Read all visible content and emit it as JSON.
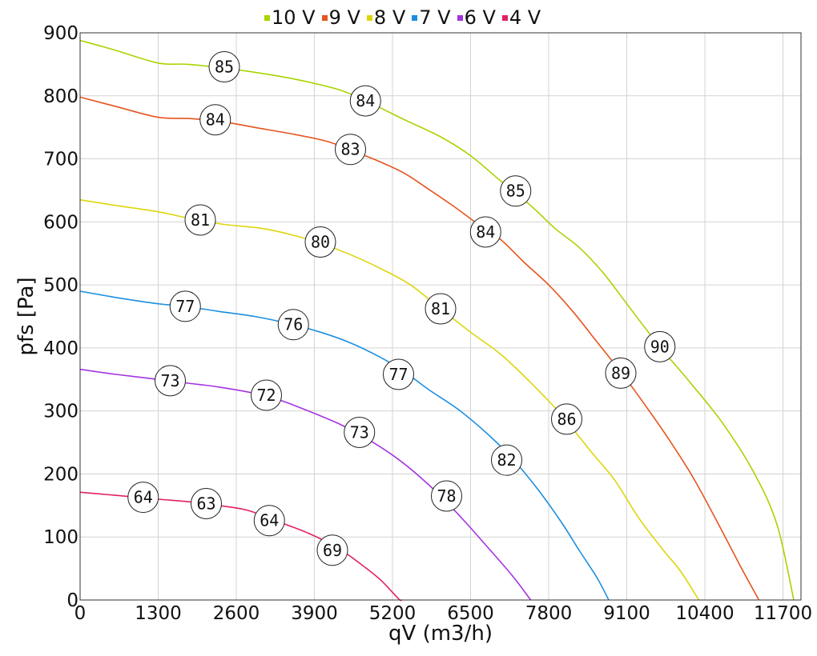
{
  "chart_data": {
    "type": "line",
    "xlabel": "qV (m3/h)",
    "ylabel": "pfs [Pa]",
    "xlim": [
      0,
      12000
    ],
    "ylim": [
      0,
      900
    ],
    "xticks": [
      0,
      1300,
      2600,
      3900,
      5200,
      6500,
      7800,
      9100,
      10400,
      11700
    ],
    "yticks": [
      0,
      100,
      200,
      300,
      400,
      500,
      600,
      700,
      800,
      900
    ],
    "grid": true,
    "legend_position": "top",
    "series": [
      {
        "name": "10 V",
        "color": "#a8d400",
        "points": [
          [
            0,
            888
          ],
          [
            600,
            872
          ],
          [
            1300,
            852
          ],
          [
            1800,
            850
          ],
          [
            2400,
            844
          ],
          [
            3000,
            836
          ],
          [
            3600,
            826
          ],
          [
            4300,
            810
          ],
          [
            4800,
            790
          ],
          [
            5400,
            762
          ],
          [
            6000,
            735
          ],
          [
            6500,
            705
          ],
          [
            7000,
            665
          ],
          [
            7500,
            626
          ],
          [
            7900,
            590
          ],
          [
            8300,
            560
          ],
          [
            8700,
            520
          ],
          [
            9100,
            470
          ],
          [
            9500,
            420
          ],
          [
            9800,
            385
          ],
          [
            10200,
            340
          ],
          [
            10700,
            280
          ],
          [
            11200,
            205
          ],
          [
            11600,
            120
          ],
          [
            11880,
            0
          ]
        ],
        "labels": [
          {
            "x": 2400,
            "y": 846,
            "text": "85"
          },
          {
            "x": 4750,
            "y": 792,
            "text": "84"
          },
          {
            "x": 7250,
            "y": 649,
            "text": "85"
          },
          {
            "x": 9650,
            "y": 402,
            "text": "90"
          }
        ]
      },
      {
        "name": "9 V",
        "color": "#e6541e",
        "points": [
          [
            0,
            798
          ],
          [
            600,
            783
          ],
          [
            1300,
            766
          ],
          [
            1800,
            764
          ],
          [
            2300,
            760
          ],
          [
            2900,
            750
          ],
          [
            3500,
            740
          ],
          [
            4100,
            728
          ],
          [
            4500,
            714
          ],
          [
            5000,
            695
          ],
          [
            5400,
            677
          ],
          [
            5800,
            652
          ],
          [
            6200,
            626
          ],
          [
            6600,
            598
          ],
          [
            7000,
            572
          ],
          [
            7400,
            535
          ],
          [
            7800,
            500
          ],
          [
            8200,
            458
          ],
          [
            8600,
            410
          ],
          [
            9000,
            362
          ],
          [
            9400,
            310
          ],
          [
            9800,
            255
          ],
          [
            10200,
            195
          ],
          [
            10600,
            125
          ],
          [
            11000,
            52
          ],
          [
            11300,
            0
          ]
        ],
        "labels": [
          {
            "x": 2250,
            "y": 762,
            "text": "84"
          },
          {
            "x": 4500,
            "y": 715,
            "text": "83"
          },
          {
            "x": 6750,
            "y": 584,
            "text": "84"
          },
          {
            "x": 9000,
            "y": 360,
            "text": "89"
          }
        ]
      },
      {
        "name": "8 V",
        "color": "#ddd60c",
        "points": [
          [
            0,
            635
          ],
          [
            600,
            626
          ],
          [
            1300,
            616
          ],
          [
            1800,
            606
          ],
          [
            2400,
            596
          ],
          [
            3000,
            590
          ],
          [
            3500,
            580
          ],
          [
            4000,
            566
          ],
          [
            4500,
            548
          ],
          [
            5000,
            526
          ],
          [
            5500,
            500
          ],
          [
            6000,
            462
          ],
          [
            6500,
            425
          ],
          [
            7000,
            390
          ],
          [
            7500,
            345
          ],
          [
            8000,
            295
          ],
          [
            8500,
            236
          ],
          [
            8900,
            190
          ],
          [
            9300,
            130
          ],
          [
            9700,
            80
          ],
          [
            10000,
            45
          ],
          [
            10300,
            0
          ]
        ],
        "labels": [
          {
            "x": 2000,
            "y": 603,
            "text": "81"
          },
          {
            "x": 4000,
            "y": 568,
            "text": "80"
          },
          {
            "x": 6000,
            "y": 462,
            "text": "81"
          },
          {
            "x": 8100,
            "y": 287,
            "text": "86"
          }
        ]
      },
      {
        "name": "7 V",
        "color": "#1d8fe0",
        "points": [
          [
            0,
            490
          ],
          [
            600,
            480
          ],
          [
            1300,
            470
          ],
          [
            1750,
            466
          ],
          [
            2300,
            458
          ],
          [
            2900,
            450
          ],
          [
            3500,
            438
          ],
          [
            4000,
            425
          ],
          [
            4500,
            408
          ],
          [
            5000,
            385
          ],
          [
            5400,
            362
          ],
          [
            5800,
            334
          ],
          [
            6300,
            302
          ],
          [
            6800,
            262
          ],
          [
            7200,
            224
          ],
          [
            7600,
            178
          ],
          [
            8000,
            125
          ],
          [
            8300,
            80
          ],
          [
            8600,
            36
          ],
          [
            8800,
            0
          ]
        ],
        "labels": [
          {
            "x": 1750,
            "y": 466,
            "text": "77"
          },
          {
            "x": 3550,
            "y": 437,
            "text": "76"
          },
          {
            "x": 5300,
            "y": 358,
            "text": "77"
          },
          {
            "x": 7100,
            "y": 222,
            "text": "82"
          }
        ]
      },
      {
        "name": "6 V",
        "color": "#a533e0",
        "points": [
          [
            0,
            366
          ],
          [
            600,
            358
          ],
          [
            1300,
            350
          ],
          [
            1800,
            344
          ],
          [
            2300,
            338
          ],
          [
            2900,
            328
          ],
          [
            3300,
            318
          ],
          [
            3800,
            300
          ],
          [
            4300,
            280
          ],
          [
            4700,
            260
          ],
          [
            5200,
            230
          ],
          [
            5600,
            200
          ],
          [
            6000,
            165
          ],
          [
            6400,
            125
          ],
          [
            6800,
            82
          ],
          [
            7200,
            38
          ],
          [
            7500,
            0
          ]
        ],
        "labels": [
          {
            "x": 1500,
            "y": 348,
            "text": "73"
          },
          {
            "x": 3100,
            "y": 325,
            "text": "72"
          },
          {
            "x": 4650,
            "y": 266,
            "text": "73"
          },
          {
            "x": 6100,
            "y": 165,
            "text": "78"
          }
        ]
      },
      {
        "name": "4 V",
        "color": "#e3215f",
        "points": [
          [
            0,
            171
          ],
          [
            600,
            166
          ],
          [
            1300,
            160
          ],
          [
            1800,
            156
          ],
          [
            2300,
            150
          ],
          [
            2800,
            142
          ],
          [
            3300,
            124
          ],
          [
            3800,
            106
          ],
          [
            4300,
            82
          ],
          [
            4700,
            55
          ],
          [
            5000,
            32
          ],
          [
            5300,
            2
          ],
          [
            5350,
            0
          ]
        ],
        "labels": [
          {
            "x": 1050,
            "y": 163,
            "text": "64"
          },
          {
            "x": 2100,
            "y": 153,
            "text": "63"
          },
          {
            "x": 3150,
            "y": 126,
            "text": "64"
          },
          {
            "x": 4200,
            "y": 79,
            "text": "69"
          }
        ]
      }
    ]
  }
}
